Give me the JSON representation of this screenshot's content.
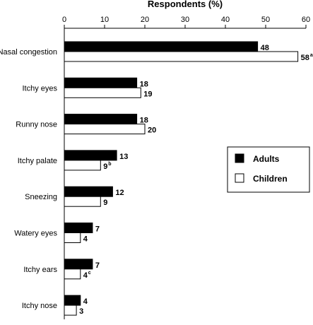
{
  "chart_data": {
    "type": "bar",
    "orientation": "horizontal",
    "title": "Respondents (%)",
    "xlim": [
      0,
      60
    ],
    "x_ticks": [
      0,
      10,
      20,
      30,
      40,
      50,
      60
    ],
    "categories": [
      "Nasal congestion",
      "Itchy eyes",
      "Runny nose",
      "Itchy palate",
      "Sneezing",
      "Watery eyes",
      "Itchy ears",
      "Itchy nose"
    ],
    "series": [
      {
        "name": "Adults",
        "color": "#000000",
        "values": [
          48,
          18,
          18,
          13,
          12,
          7,
          7,
          4
        ],
        "labels": [
          "48",
          "18",
          "18",
          "13",
          "12",
          "7",
          "7",
          "4"
        ],
        "label_superscripts": [
          "",
          "",
          "",
          "",
          "",
          "",
          "",
          ""
        ]
      },
      {
        "name": "Children",
        "color": "#ffffff",
        "values": [
          58,
          19,
          20,
          9,
          9,
          4,
          4,
          3
        ],
        "labels": [
          "58",
          "19",
          "20",
          "9",
          "9",
          "4",
          "4",
          "3"
        ],
        "label_superscripts": [
          "a",
          "",
          "",
          "b",
          "",
          "",
          "c",
          ""
        ]
      }
    ],
    "legend_position": "right",
    "grid": false
  }
}
